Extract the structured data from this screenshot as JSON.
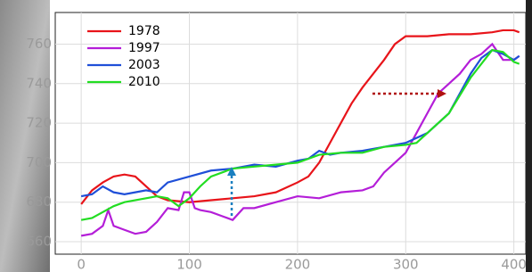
{
  "chart_data": {
    "type": "line",
    "xlim": [
      -24,
      411
    ],
    "ylim": [
      653.7,
      776
    ],
    "xticks": [
      0,
      100,
      200,
      300,
      400
    ],
    "yticks": [
      660,
      680,
      700,
      720,
      740,
      760
    ],
    "grid": true,
    "legend": "upper left",
    "series": [
      {
        "name": "1978",
        "color": "#e8141a",
        "x": [
          0,
          10,
          20,
          30,
          40,
          50,
          60,
          70,
          80,
          100,
          120,
          140,
          160,
          180,
          200,
          210,
          220,
          230,
          240,
          250,
          260,
          270,
          280,
          290,
          300,
          320,
          340,
          360,
          380,
          390,
          400,
          405
        ],
        "values": [
          679,
          686,
          690,
          693,
          694,
          693,
          688,
          683,
          681,
          680,
          681,
          682,
          683,
          685,
          690,
          693,
          700,
          710,
          720,
          730,
          738,
          745,
          752,
          760,
          764,
          764,
          765,
          765,
          766,
          767,
          767,
          766
        ]
      },
      {
        "name": "1997",
        "color": "#b41ed8",
        "x": [
          0,
          10,
          20,
          25,
          30,
          40,
          50,
          60,
          70,
          80,
          90,
          95,
          100,
          105,
          110,
          120,
          130,
          140,
          150,
          160,
          180,
          200,
          220,
          240,
          260,
          270,
          280,
          290,
          300,
          310,
          320,
          330,
          340,
          350,
          360,
          370,
          380,
          390,
          400,
          405
        ],
        "values": [
          663,
          664,
          668,
          676,
          668,
          666,
          664,
          665,
          670,
          677,
          676,
          685,
          685,
          677,
          676,
          675,
          673,
          671,
          677,
          677,
          680,
          683,
          682,
          685,
          686,
          688,
          695,
          700,
          705,
          715,
          725,
          735,
          740,
          745,
          752,
          755,
          760,
          752,
          752,
          754
        ]
      },
      {
        "name": "2003",
        "color": "#1f4fd8",
        "x": [
          0,
          10,
          20,
          30,
          40,
          50,
          60,
          70,
          80,
          100,
          120,
          140,
          160,
          180,
          200,
          210,
          220,
          230,
          240,
          260,
          280,
          300,
          320,
          340,
          350,
          360,
          370,
          380,
          390,
          400,
          405
        ],
        "values": [
          683,
          684,
          688,
          685,
          684,
          685,
          686,
          685,
          690,
          693,
          696,
          697,
          699,
          698,
          701,
          702,
          706,
          704,
          705,
          706,
          708,
          710,
          715,
          725,
          735,
          745,
          753,
          757,
          755,
          752,
          754
        ]
      },
      {
        "name": "2010",
        "color": "#22dd22",
        "x": [
          0,
          10,
          20,
          30,
          40,
          60,
          70,
          80,
          90,
          100,
          110,
          120,
          140,
          160,
          180,
          200,
          220,
          240,
          260,
          280,
          300,
          310,
          320,
          340,
          360,
          370,
          380,
          390,
          400,
          405
        ],
        "values": [
          671,
          672,
          675,
          678,
          680,
          682,
          683,
          682,
          678,
          682,
          688,
          693,
          697,
          698,
          699,
          700,
          704,
          705,
          705,
          708,
          709,
          710,
          715,
          725,
          743,
          750,
          757,
          756,
          751,
          750
        ]
      }
    ]
  }
}
